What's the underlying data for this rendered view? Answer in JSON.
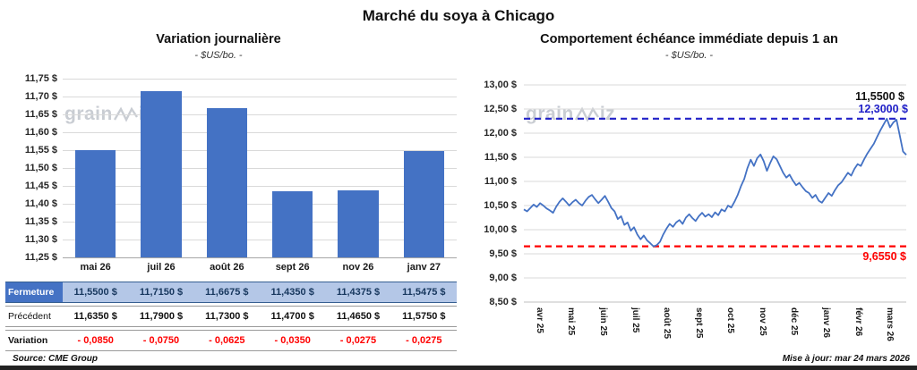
{
  "page": {
    "title": "Marché du soya à Chicago",
    "source": "Source: CME Group",
    "updated": "Mise à jour: mar 24 mars 2026",
    "watermark": {
      "prefix": "grain",
      "suffix": "iz"
    }
  },
  "colors": {
    "bar": "#4472C4",
    "line": "#4472C4",
    "high": "#2121C8",
    "low": "#FF0000",
    "grid": "#D9D9D9",
    "labelbg": "#4472C4",
    "valuebg": "#B4C7E7",
    "valuetext": "#17375E",
    "negative": "#FF0000"
  },
  "chart_data": [
    {
      "type": "bar",
      "title": "Variation journalière",
      "subtitle": "- $US/bo. -",
      "categories": [
        "mai 26",
        "juil 26",
        "août 26",
        "sept 26",
        "nov 26",
        "janv 27"
      ],
      "values": [
        11.55,
        11.715,
        11.6675,
        11.435,
        11.4375,
        11.5475
      ],
      "ylim": [
        11.25,
        11.75
      ],
      "ytick_step": 0.05,
      "ytick_labels": [
        "11,75 $",
        "11,70 $",
        "11,65 $",
        "11,60 $",
        "11,55 $",
        "11,50 $",
        "11,45 $",
        "11,40 $",
        "11,35 $",
        "11,30 $",
        "11,25 $"
      ],
      "grid": true,
      "table": {
        "rows": [
          {
            "key": "fermeture",
            "label": "Fermeture",
            "values": [
              "11,5500  $",
              "11,7150  $",
              "11,6675  $",
              "11,4350  $",
              "11,4375  $",
              "11,5475  $"
            ]
          },
          {
            "key": "precedent",
            "label": "Précédent",
            "values": [
              "11,6350  $",
              "11,7900  $",
              "11,7300  $",
              "11,4700  $",
              "11,4650  $",
              "11,5750  $"
            ]
          },
          {
            "key": "variation",
            "label": "Variation",
            "values": [
              "- 0,0850",
              "- 0,0750",
              "- 0,0625",
              "- 0,0350",
              "- 0,0275",
              "- 0,0275"
            ]
          }
        ]
      }
    },
    {
      "type": "line",
      "title": "Comportement échéance immédiate depuis 1 an",
      "subtitle": "- $US/bo. -",
      "x_categories": [
        "avr 25",
        "mai 25",
        "juin 25",
        "juil 25",
        "août 25",
        "sept 25",
        "oct 25",
        "nov 25",
        "déc 25",
        "janv 26",
        "févr 26",
        "mars 26"
      ],
      "ylim": [
        8.5,
        13.0
      ],
      "ytick_step": 0.5,
      "ytick_labels": [
        "13,00 $",
        "12,50 $",
        "12,00 $",
        "11,50 $",
        "11,00 $",
        "10,50 $",
        "10,00 $",
        "9,50 $",
        "9,00 $",
        "8,50 $"
      ],
      "grid": true,
      "high_line": {
        "value": 12.3,
        "label": "12,3000 $"
      },
      "low_line": {
        "value": 9.655,
        "label": "9,6550 $"
      },
      "last_label": "11,5500 $",
      "values": [
        10.42,
        10.38,
        10.45,
        10.52,
        10.47,
        10.55,
        10.5,
        10.44,
        10.4,
        10.35,
        10.48,
        10.58,
        10.65,
        10.58,
        10.5,
        10.57,
        10.62,
        10.55,
        10.5,
        10.6,
        10.68,
        10.72,
        10.63,
        10.55,
        10.62,
        10.7,
        10.58,
        10.45,
        10.38,
        10.22,
        10.28,
        10.1,
        10.15,
        9.98,
        10.05,
        9.9,
        9.8,
        9.88,
        9.78,
        9.72,
        9.655,
        9.68,
        9.75,
        9.9,
        10.02,
        10.12,
        10.06,
        10.15,
        10.2,
        10.12,
        10.25,
        10.32,
        10.24,
        10.18,
        10.28,
        10.35,
        10.27,
        10.32,
        10.26,
        10.36,
        10.3,
        10.42,
        10.38,
        10.5,
        10.46,
        10.58,
        10.72,
        10.9,
        11.05,
        11.28,
        11.45,
        11.32,
        11.48,
        11.56,
        11.42,
        11.22,
        11.38,
        11.52,
        11.46,
        11.32,
        11.18,
        11.08,
        11.14,
        11.02,
        10.92,
        10.97,
        10.88,
        10.8,
        10.76,
        10.66,
        10.72,
        10.6,
        10.56,
        10.66,
        10.76,
        10.7,
        10.82,
        10.92,
        10.98,
        11.08,
        11.18,
        11.12,
        11.26,
        11.36,
        11.32,
        11.46,
        11.58,
        11.68,
        11.78,
        11.92,
        12.06,
        12.18,
        12.3,
        12.12,
        12.22,
        12.28,
        11.95,
        11.62,
        11.55
      ]
    }
  ]
}
